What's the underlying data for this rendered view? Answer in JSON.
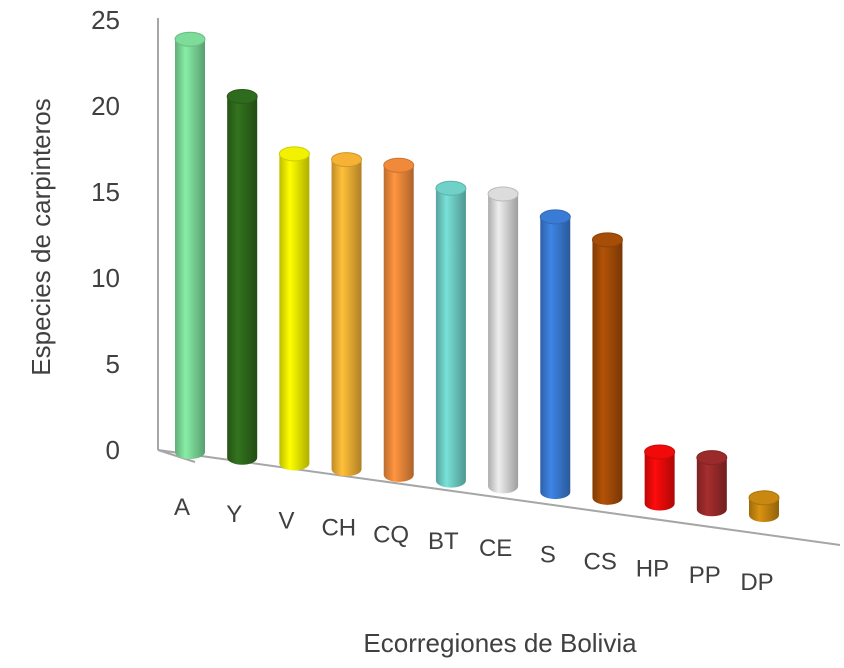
{
  "chart_data": {
    "type": "bar",
    "style": "3d-cylinder",
    "categories": [
      "A",
      "Y",
      "V",
      "CH",
      "CQ",
      "BT",
      "CE",
      "S",
      "CS",
      "HP",
      "PP",
      "DP"
    ],
    "values": [
      24,
      21,
      18,
      18,
      18,
      17,
      17,
      16,
      15,
      3,
      3,
      1
    ],
    "colors": [
      "#7ddc9a",
      "#2f6b1c",
      "#f2f200",
      "#f5b234",
      "#f08a3a",
      "#6fd1c8",
      "#dcdcdc",
      "#3a7bd5",
      "#a64d07",
      "#f00a0a",
      "#9b2b2b",
      "#c9880f"
    ],
    "ylabel": "Especies de carpinteros",
    "xlabel": "Ecorregiones de Bolivia",
    "yticks": [
      0,
      5,
      10,
      15,
      20,
      25
    ],
    "ylim": [
      0,
      25
    ],
    "grid": false,
    "legend": "none"
  }
}
